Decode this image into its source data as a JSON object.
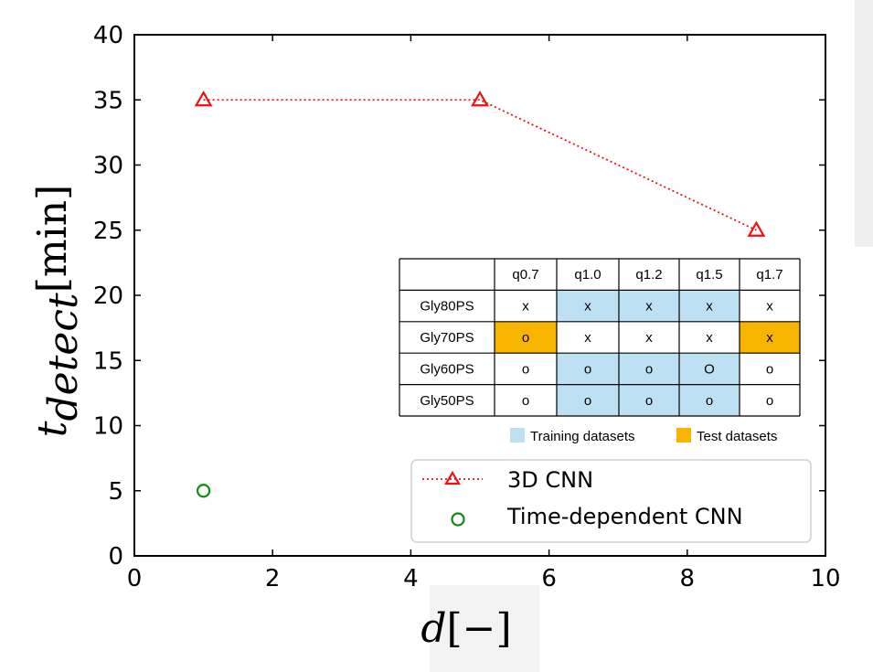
{
  "chart_data": {
    "type": "line",
    "xlabel_main": "d",
    "xlabel_unit": "[−]",
    "ylabel_main": "t",
    "ylabel_sub": "detect",
    "ylabel_unit": "[min]",
    "xlim": [
      0,
      10
    ],
    "ylim": [
      0,
      40
    ],
    "xticks": [
      0,
      2,
      4,
      6,
      8,
      10
    ],
    "yticks": [
      0,
      5,
      10,
      15,
      20,
      25,
      30,
      35,
      40
    ],
    "grid": false,
    "series": [
      {
        "name": "3D CNN",
        "marker": "triangle",
        "line": "dotted",
        "color": "#ee1111",
        "x": [
          1,
          5,
          9
        ],
        "y": [
          35,
          35,
          25
        ]
      },
      {
        "name": "Time-dependent CNN",
        "marker": "circle",
        "line": "none",
        "color": "#118811",
        "x": [
          1
        ],
        "y": [
          5
        ]
      }
    ],
    "legend_position": "bottom-right"
  },
  "inset_table": {
    "columns": [
      "",
      "q0.7",
      "q1.0",
      "q1.2",
      "q1.5",
      "q1.7"
    ],
    "rows": [
      {
        "label": "Gly80PS",
        "cells": [
          "x",
          "x",
          "x",
          "x",
          "x"
        ],
        "fills": [
          "none",
          "training",
          "training",
          "training",
          "none"
        ]
      },
      {
        "label": "Gly70PS",
        "cells": [
          "o",
          "x",
          "x",
          "x",
          "x"
        ],
        "fills": [
          "test",
          "none",
          "none",
          "none",
          "test"
        ]
      },
      {
        "label": "Gly60PS",
        "cells": [
          "o",
          "o",
          "o",
          "O",
          "o"
        ],
        "fills": [
          "none",
          "training",
          "training",
          "training",
          "none"
        ]
      },
      {
        "label": "Gly50PS",
        "cells": [
          "o",
          "o",
          "o",
          "o",
          "o"
        ],
        "fills": [
          "none",
          "training",
          "training",
          "training",
          "none"
        ]
      }
    ],
    "legend": {
      "training_label": "Training datasets",
      "test_label": "Test datasets"
    },
    "colors": {
      "training": "#bde0f2",
      "test": "#f7b500"
    }
  }
}
